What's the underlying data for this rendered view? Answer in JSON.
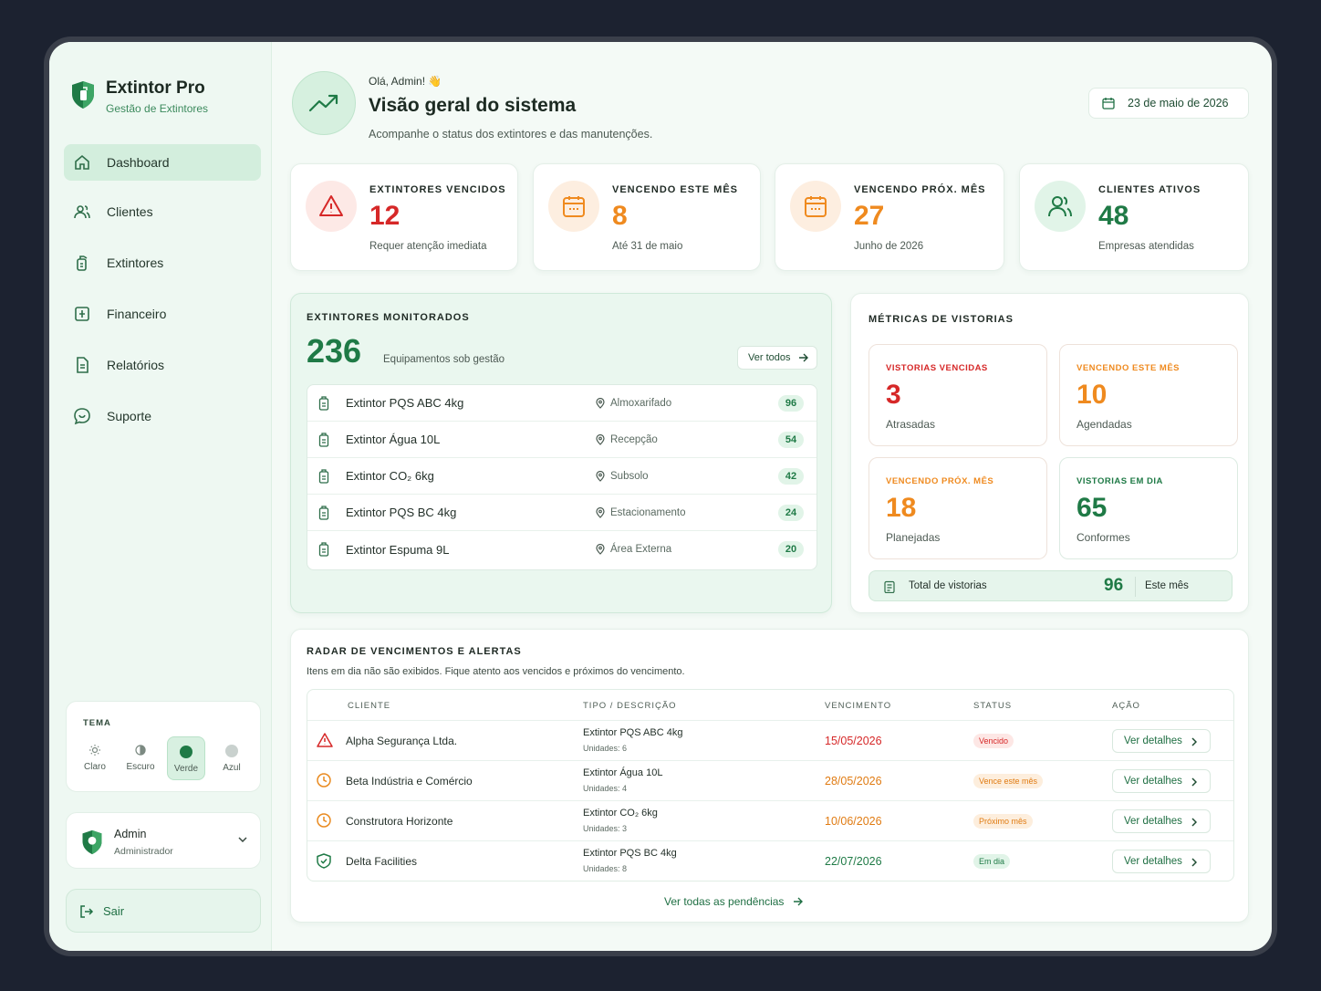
{
  "brand": {
    "title": "Extintor Pro",
    "subtitle": "Gestão de Extintores"
  },
  "nav": {
    "items": [
      {
        "label": "Dashboard",
        "icon": "home-icon"
      },
      {
        "label": "Clientes",
        "icon": "users-icon"
      },
      {
        "label": "Extintores",
        "icon": "extinguisher-icon"
      },
      {
        "label": "Financeiro",
        "icon": "finance-icon"
      },
      {
        "label": "Relatórios",
        "icon": "report-icon"
      },
      {
        "label": "Suporte",
        "icon": "support-icon"
      }
    ],
    "active": "Dashboard"
  },
  "theme": {
    "title": "TEMA",
    "options": [
      {
        "label": "Claro",
        "icon": "sun-icon"
      },
      {
        "label": "Escuro",
        "icon": "moon-icon"
      },
      {
        "label": "Verde",
        "color": "#1f7a46"
      },
      {
        "label": "Azul",
        "color": "#c9d1ce"
      }
    ],
    "selected": "Verde"
  },
  "user": {
    "name": "Admin",
    "role": "Administrador"
  },
  "logout_label": "Sair",
  "header": {
    "greeting": "Olá, Admin! 👋",
    "title": "Visão geral do sistema",
    "subtitle": "Acompanhe o status dos extintores e das manutenções.",
    "date": "23 de maio de 2026"
  },
  "stats": [
    {
      "label": "EXTINTORES VENCIDOS",
      "value": "12",
      "sub": "Requer atenção imediata",
      "color": "#d62828",
      "icon": "alert-triangle-icon"
    },
    {
      "label": "VENCENDO ESTE MÊS",
      "value": "8",
      "sub": "Até 31 de maio",
      "color": "#ef8a1f",
      "icon": "calendar-icon"
    },
    {
      "label": "VENCENDO PRÓX. MÊS",
      "value": "27",
      "sub": "Junho de 2026",
      "color": "#ef8a1f",
      "icon": "calendar-icon"
    },
    {
      "label": "CLIENTES ATIVOS",
      "value": "48",
      "sub": "Empresas atendidas",
      "color": "#1f7a46",
      "icon": "users-icon"
    }
  ],
  "monitored": {
    "title": "EXTINTORES MONITORADOS",
    "total": "236",
    "total_label": "Equipamentos sob gestão",
    "see_all": "Ver todos",
    "items": [
      {
        "name": "Extintor PQS ABC 4kg",
        "location": "Almoxarifado",
        "count": "96"
      },
      {
        "name": "Extintor Água 10L",
        "location": "Recepção",
        "count": "54"
      },
      {
        "name": "Extintor CO₂ 6kg",
        "location": "Subsolo",
        "count": "42"
      },
      {
        "name": "Extintor PQS BC 4kg",
        "location": "Estacionamento",
        "count": "24"
      },
      {
        "name": "Extintor Espuma 9L",
        "location": "Área Externa",
        "count": "20"
      }
    ]
  },
  "metrics": {
    "title": "MÉTRICAS DE VISTORIAS",
    "cards": [
      {
        "label": "VISTORIAS VENCIDAS",
        "value": "3",
        "sub": "Atrasadas",
        "color": "#d62828"
      },
      {
        "label": "VENCENDO ESTE MÊS",
        "value": "10",
        "sub": "Agendadas",
        "color": "#ef8a1f"
      },
      {
        "label": "VENCENDO PRÓX. MÊS",
        "value": "18",
        "sub": "Planejadas",
        "color": "#ef8a1f"
      },
      {
        "label": "VISTORIAS EM DIA",
        "value": "65",
        "sub": "Conformes",
        "color": "#1f7a46"
      }
    ],
    "total_label": "Total de vistorias",
    "total_value": "96",
    "total_period": "Este mês"
  },
  "radar": {
    "title": "RADAR DE VENCIMENTOS E ALERTAS",
    "subtitle": "Itens em dia não são exibidos. Fique atento aos vencidos e próximos do vencimento.",
    "columns": [
      "CLIENTE",
      "TIPO / DESCRIÇÃO",
      "VENCIMENTO",
      "STATUS",
      "AÇÃO"
    ],
    "rows": [
      {
        "client": "Alpha Segurança Ltda.",
        "type": "Extintor PQS ABC 4kg",
        "units": "Unidades: 6",
        "date": "15/05/2026",
        "status": "Vencido",
        "color": "#d62828",
        "bg": "#fde7e5",
        "icon": "alert-triangle-icon"
      },
      {
        "client": "Beta Indústria e Comércio",
        "type": "Extintor Água 10L",
        "units": "Unidades: 4",
        "date": "28/05/2026",
        "status": "Vence este mês",
        "color": "#e07b12",
        "bg": "#fdeedd",
        "icon": "clock-icon"
      },
      {
        "client": "Construtora Horizonte",
        "type": "Extintor CO₂ 6kg",
        "units": "Unidades: 3",
        "date": "10/06/2026",
        "status": "Próximo mês",
        "color": "#e07b12",
        "bg": "#fdeedd",
        "icon": "clock-icon"
      },
      {
        "client": "Delta Facilities",
        "type": "Extintor PQS BC 4kg",
        "units": "Unidades: 8",
        "date": "22/07/2026",
        "status": "Em dia",
        "color": "#1f7a46",
        "bg": "#e1f4e8",
        "icon": "shield-check-icon"
      }
    ],
    "action_label": "Ver detalhes",
    "see_all": "Ver todas as pendências"
  }
}
